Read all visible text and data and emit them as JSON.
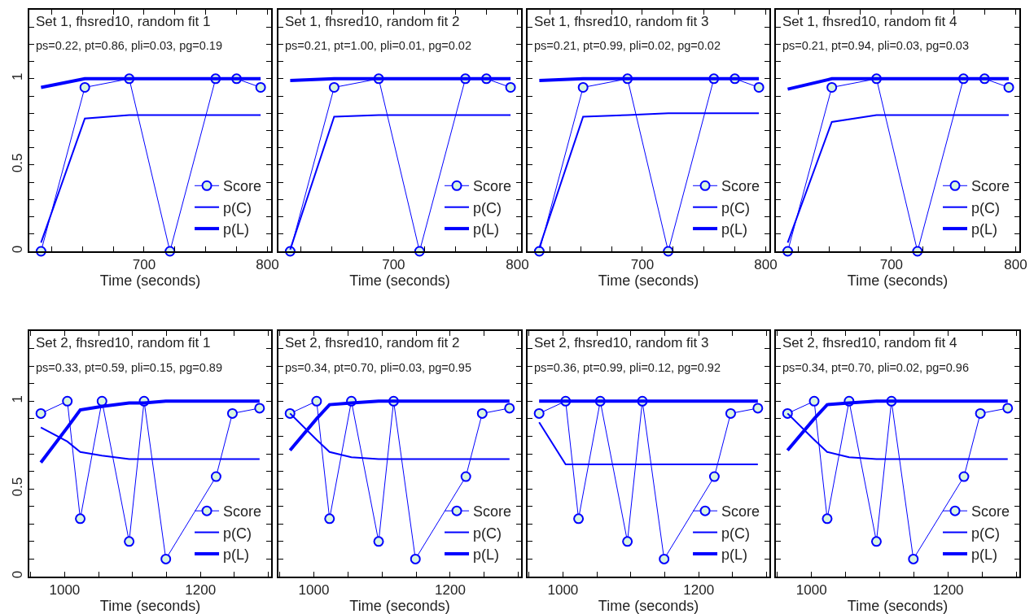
{
  "chart_data": [
    {
      "type": "line",
      "title": "Set 1, fhsred10, random fit 1",
      "subtitle": "ps=0.22, pt=0.86, pli=0.03, pg=0.19",
      "xlabel": "Time (seconds)",
      "x": [
        616.5,
        652,
        688,
        721,
        758,
        775,
        794.5
      ],
      "series": [
        {
          "name": "Score",
          "color": "#0000ff",
          "marker": "circle",
          "values": [
            0,
            0.95,
            1,
            0,
            1,
            1,
            0.95
          ]
        },
        {
          "name": "p(C)",
          "color": "#0000ff",
          "marker": "none",
          "values": [
            0.05,
            0.77,
            0.79,
            0.79,
            0.79,
            0.79,
            0.79
          ]
        },
        {
          "name": "p(L)",
          "color": "#0000ff",
          "marker": "none",
          "values": [
            0.95,
            1,
            1,
            1,
            1,
            1,
            1
          ]
        }
      ],
      "xlim": [
        607,
        803
      ],
      "xticks": [
        {
          "value": 625,
          "label": null
        },
        {
          "value": 650,
          "label": null
        },
        {
          "value": 675,
          "label": null
        },
        700,
        {
          "value": 725,
          "label": null
        },
        {
          "value": 750,
          "label": null
        },
        {
          "value": 775,
          "label": null
        },
        800
      ],
      "ylim": [
        0,
        1.4
      ],
      "yticks": [
        0,
        {
          "value": 0.1,
          "label": null
        },
        {
          "value": 0.2,
          "label": null
        },
        {
          "value": 0.3,
          "label": null
        },
        {
          "value": 0.4,
          "label": null
        },
        0.5,
        {
          "value": 0.6,
          "label": null
        },
        {
          "value": 0.7,
          "label": null
        },
        {
          "value": 0.8,
          "label": null
        },
        {
          "value": 0.9,
          "label": null
        },
        1,
        {
          "value": 1.1,
          "label": null
        },
        {
          "value": 1.2,
          "label": null
        },
        {
          "value": 1.3,
          "label": null
        }
      ],
      "legend": "bottom right"
    },
    {
      "type": "line",
      "title": "Set 1, fhsred10, random fit 2",
      "subtitle": "ps=0.21, pt=1.00, pli=0.01, pg=0.02",
      "xlabel": "Time (seconds)",
      "x": [
        616.5,
        652,
        688,
        721,
        758,
        775,
        794.5
      ],
      "series": [
        {
          "name": "Score",
          "color": "#0000ff",
          "marker": "circle",
          "values": [
            0,
            0.95,
            1,
            0,
            1,
            1,
            0.95
          ]
        },
        {
          "name": "p(C)",
          "color": "#0000ff",
          "marker": "none",
          "values": [
            0.01,
            0.78,
            0.79,
            0.79,
            0.79,
            0.79,
            0.79
          ]
        },
        {
          "name": "p(L)",
          "color": "#0000ff",
          "marker": "none",
          "values": [
            0.99,
            1,
            1,
            1,
            1,
            1,
            1
          ]
        }
      ],
      "xlim": [
        607,
        803
      ],
      "xticks": [
        {
          "value": 625,
          "label": null
        },
        {
          "value": 650,
          "label": null
        },
        {
          "value": 675,
          "label": null
        },
        700,
        {
          "value": 725,
          "label": null
        },
        {
          "value": 750,
          "label": null
        },
        {
          "value": 775,
          "label": null
        },
        800
      ],
      "ylim": [
        0,
        1.4
      ],
      "yticks": [
        0,
        {
          "value": 0.1,
          "label": null
        },
        {
          "value": 0.2,
          "label": null
        },
        {
          "value": 0.3,
          "label": null
        },
        {
          "value": 0.4,
          "label": null
        },
        0.5,
        {
          "value": 0.6,
          "label": null
        },
        {
          "value": 0.7,
          "label": null
        },
        {
          "value": 0.8,
          "label": null
        },
        {
          "value": 0.9,
          "label": null
        },
        1,
        {
          "value": 1.1,
          "label": null
        },
        {
          "value": 1.2,
          "label": null
        },
        {
          "value": 1.3,
          "label": null
        }
      ],
      "tick_labels": "x",
      "legend": "bottom right"
    },
    {
      "type": "line",
      "title": "Set 1, fhsred10, random fit 3",
      "subtitle": "ps=0.21, pt=0.99, pli=0.02, pg=0.02",
      "xlabel": "Time (seconds)",
      "x": [
        616.5,
        652,
        688,
        721,
        758,
        775,
        794.5
      ],
      "series": [
        {
          "name": "Score",
          "color": "#0000ff",
          "marker": "circle",
          "values": [
            0,
            0.95,
            1,
            0,
            1,
            1,
            0.95
          ]
        },
        {
          "name": "p(C)",
          "color": "#0000ff",
          "marker": "none",
          "values": [
            0.02,
            0.78,
            0.79,
            0.8,
            0.8,
            0.8,
            0.8
          ]
        },
        {
          "name": "p(L)",
          "color": "#0000ff",
          "marker": "none",
          "values": [
            0.99,
            1,
            1,
            1,
            1,
            1,
            1
          ]
        }
      ],
      "xlim": [
        607,
        803
      ],
      "xticks": [
        {
          "value": 625,
          "label": null
        },
        {
          "value": 650,
          "label": null
        },
        {
          "value": 675,
          "label": null
        },
        700,
        {
          "value": 725,
          "label": null
        },
        {
          "value": 750,
          "label": null
        },
        {
          "value": 775,
          "label": null
        },
        800
      ],
      "ylim": [
        0,
        1.4
      ],
      "yticks": [
        0,
        {
          "value": 0.1,
          "label": null
        },
        {
          "value": 0.2,
          "label": null
        },
        {
          "value": 0.3,
          "label": null
        },
        {
          "value": 0.4,
          "label": null
        },
        0.5,
        {
          "value": 0.6,
          "label": null
        },
        {
          "value": 0.7,
          "label": null
        },
        {
          "value": 0.8,
          "label": null
        },
        {
          "value": 0.9,
          "label": null
        },
        1,
        {
          "value": 1.1,
          "label": null
        },
        {
          "value": 1.2,
          "label": null
        },
        {
          "value": 1.3,
          "label": null
        }
      ],
      "tick_labels": "x",
      "legend": "bottom right"
    },
    {
      "type": "line",
      "title": "Set 1, fhsred10, random fit 4",
      "subtitle": "ps=0.21, pt=0.94, pli=0.03, pg=0.03",
      "xlabel": "Time (seconds)",
      "x": [
        616.5,
        652,
        688,
        721,
        758,
        775,
        794.5
      ],
      "series": [
        {
          "name": "Score",
          "color": "#0000ff",
          "marker": "circle",
          "values": [
            0,
            0.95,
            1,
            0,
            1,
            1,
            0.95
          ]
        },
        {
          "name": "p(C)",
          "color": "#0000ff",
          "marker": "none",
          "values": [
            0.05,
            0.75,
            0.79,
            0.79,
            0.79,
            0.79,
            0.79
          ]
        },
        {
          "name": "p(L)",
          "color": "#0000ff",
          "marker": "none",
          "values": [
            0.94,
            1,
            1,
            1,
            1,
            1,
            1
          ]
        }
      ],
      "xlim": [
        607,
        803
      ],
      "xticks": [
        {
          "value": 625,
          "label": null
        },
        {
          "value": 650,
          "label": null
        },
        {
          "value": 675,
          "label": null
        },
        700,
        {
          "value": 725,
          "label": null
        },
        {
          "value": 750,
          "label": null
        },
        {
          "value": 775,
          "label": null
        },
        800
      ],
      "ylim": [
        0,
        1.4
      ],
      "yticks": [
        0,
        {
          "value": 0.1,
          "label": null
        },
        {
          "value": 0.2,
          "label": null
        },
        {
          "value": 0.3,
          "label": null
        },
        {
          "value": 0.4,
          "label": null
        },
        0.5,
        {
          "value": 0.6,
          "label": null
        },
        {
          "value": 0.7,
          "label": null
        },
        {
          "value": 0.8,
          "label": null
        },
        {
          "value": 0.9,
          "label": null
        },
        1,
        {
          "value": 1.1,
          "label": null
        },
        {
          "value": 1.2,
          "label": null
        },
        {
          "value": 1.3,
          "label": null
        }
      ],
      "tick_labels": "x",
      "legend": "bottom right"
    },
    {
      "type": "line",
      "title": "Set 2, fhsred10, random fit 1",
      "subtitle": "ps=0.33, pt=0.59, pli=0.15, pg=0.89",
      "xlabel": "Time (seconds)",
      "x": [
        965,
        1004,
        1023,
        1055,
        1095,
        1117,
        1149,
        1223,
        1247,
        1287
      ],
      "series": [
        {
          "name": "Score",
          "color": "#0000ff",
          "marker": "circle",
          "values": [
            0.93,
            1,
            0.33,
            1,
            0.2,
            1,
            0.1,
            0.57,
            0.93,
            0.96
          ]
        },
        {
          "name": "p(C)",
          "color": "#0000ff",
          "marker": "none",
          "values": [
            0.85,
            0.77,
            0.71,
            0.69,
            0.67,
            0.67,
            0.67,
            0.67,
            0.67,
            0.67
          ]
        },
        {
          "name": "p(L)",
          "color": "#0000ff",
          "marker": "none",
          "values": [
            0.65,
            0.85,
            0.95,
            0.97,
            0.99,
            0.99,
            1,
            1,
            1,
            1
          ]
        }
      ],
      "xlim": [
        948,
        1304
      ],
      "xticks": [
        {
          "value": 950,
          "label": null
        },
        1000,
        {
          "value": 1050,
          "label": null
        },
        {
          "value": 1100,
          "label": null
        },
        {
          "value": 1150,
          "label": null
        },
        1200,
        {
          "value": 1250,
          "label": null
        },
        {
          "value": 1300,
          "label": null
        }
      ],
      "ylim": [
        0,
        1.4
      ],
      "yticks": [
        0,
        {
          "value": 0.1,
          "label": null
        },
        {
          "value": 0.2,
          "label": null
        },
        {
          "value": 0.3,
          "label": null
        },
        {
          "value": 0.4,
          "label": null
        },
        0.5,
        {
          "value": 0.6,
          "label": null
        },
        {
          "value": 0.7,
          "label": null
        },
        {
          "value": 0.8,
          "label": null
        },
        {
          "value": 0.9,
          "label": null
        },
        1,
        {
          "value": 1.1,
          "label": null
        },
        {
          "value": 1.2,
          "label": null
        },
        {
          "value": 1.3,
          "label": null
        }
      ],
      "legend": "bottom right"
    },
    {
      "type": "line",
      "title": "Set 2, fhsred10, random fit 2",
      "subtitle": "ps=0.34, pt=0.70, pli=0.03, pg=0.95",
      "xlabel": "Time (seconds)",
      "x": [
        965,
        1004,
        1023,
        1055,
        1095,
        1117,
        1149,
        1223,
        1247,
        1287
      ],
      "series": [
        {
          "name": "Score",
          "color": "#0000ff",
          "marker": "circle",
          "values": [
            0.93,
            1,
            0.33,
            1,
            0.2,
            1,
            0.1,
            0.57,
            0.93,
            0.96
          ]
        },
        {
          "name": "p(C)",
          "color": "#0000ff",
          "marker": "none",
          "values": [
            0.93,
            0.78,
            0.71,
            0.68,
            0.67,
            0.67,
            0.67,
            0.67,
            0.67,
            0.67
          ]
        },
        {
          "name": "p(L)",
          "color": "#0000ff",
          "marker": "none",
          "values": [
            0.72,
            0.9,
            0.98,
            0.99,
            1,
            1,
            1,
            1,
            1,
            1
          ]
        }
      ],
      "xlim": [
        948,
        1304
      ],
      "xticks": [
        {
          "value": 950,
          "label": null
        },
        1000,
        {
          "value": 1050,
          "label": null
        },
        {
          "value": 1100,
          "label": null
        },
        {
          "value": 1150,
          "label": null
        },
        1200,
        {
          "value": 1250,
          "label": null
        },
        {
          "value": 1300,
          "label": null
        }
      ],
      "ylim": [
        0,
        1.4
      ],
      "yticks": [
        0,
        {
          "value": 0.1,
          "label": null
        },
        {
          "value": 0.2,
          "label": null
        },
        {
          "value": 0.3,
          "label": null
        },
        {
          "value": 0.4,
          "label": null
        },
        0.5,
        {
          "value": 0.6,
          "label": null
        },
        {
          "value": 0.7,
          "label": null
        },
        {
          "value": 0.8,
          "label": null
        },
        {
          "value": 0.9,
          "label": null
        },
        1,
        {
          "value": 1.1,
          "label": null
        },
        {
          "value": 1.2,
          "label": null
        },
        {
          "value": 1.3,
          "label": null
        }
      ],
      "tick_labels": "x",
      "legend": "bottom right"
    },
    {
      "type": "line",
      "title": "Set 2, fhsred10, random fit 3",
      "subtitle": "ps=0.36, pt=0.99, pli=0.12, pg=0.92",
      "xlabel": "Time (seconds)",
      "x": [
        965,
        1004,
        1023,
        1055,
        1095,
        1117,
        1149,
        1223,
        1247,
        1287
      ],
      "series": [
        {
          "name": "Score",
          "color": "#0000ff",
          "marker": "circle",
          "values": [
            0.93,
            1,
            0.33,
            1,
            0.2,
            1,
            0.1,
            0.57,
            0.93,
            0.96
          ]
        },
        {
          "name": "p(C)",
          "color": "#0000ff",
          "marker": "none",
          "values": [
            0.88,
            0.64,
            0.64,
            0.64,
            0.64,
            0.64,
            0.64,
            0.64,
            0.64,
            0.64
          ]
        },
        {
          "name": "p(L)",
          "color": "#0000ff",
          "marker": "none",
          "values": [
            1,
            1,
            1,
            1,
            1,
            1,
            1,
            1,
            1,
            1
          ]
        }
      ],
      "xlim": [
        948,
        1304
      ],
      "xticks": [
        {
          "value": 950,
          "label": null
        },
        1000,
        {
          "value": 1050,
          "label": null
        },
        {
          "value": 1100,
          "label": null
        },
        {
          "value": 1150,
          "label": null
        },
        1200,
        {
          "value": 1250,
          "label": null
        },
        {
          "value": 1300,
          "label": null
        }
      ],
      "ylim": [
        0,
        1.4
      ],
      "yticks": [
        0,
        {
          "value": 0.1,
          "label": null
        },
        {
          "value": 0.2,
          "label": null
        },
        {
          "value": 0.3,
          "label": null
        },
        {
          "value": 0.4,
          "label": null
        },
        0.5,
        {
          "value": 0.6,
          "label": null
        },
        {
          "value": 0.7,
          "label": null
        },
        {
          "value": 0.8,
          "label": null
        },
        {
          "value": 0.9,
          "label": null
        },
        1,
        {
          "value": 1.1,
          "label": null
        },
        {
          "value": 1.2,
          "label": null
        },
        {
          "value": 1.3,
          "label": null
        }
      ],
      "tick_labels": "x",
      "legend": "bottom right"
    },
    {
      "type": "line",
      "title": "Set 2, fhsred10, random fit 4",
      "subtitle": "ps=0.34, pt=0.70, pli=0.02, pg=0.96",
      "xlabel": "Time (seconds)",
      "x": [
        965,
        1004,
        1023,
        1055,
        1095,
        1117,
        1149,
        1223,
        1247,
        1287
      ],
      "series": [
        {
          "name": "Score",
          "color": "#0000ff",
          "marker": "circle",
          "values": [
            0.93,
            1,
            0.33,
            1,
            0.2,
            1,
            0.1,
            0.57,
            0.93,
            0.96
          ]
        },
        {
          "name": "p(C)",
          "color": "#0000ff",
          "marker": "none",
          "values": [
            0.93,
            0.78,
            0.71,
            0.68,
            0.67,
            0.67,
            0.67,
            0.67,
            0.67,
            0.67
          ]
        },
        {
          "name": "p(L)",
          "color": "#0000ff",
          "marker": "none",
          "values": [
            0.72,
            0.9,
            0.98,
            0.99,
            1,
            1,
            1,
            1,
            1,
            1
          ]
        }
      ],
      "xlim": [
        948,
        1304
      ],
      "xticks": [
        {
          "value": 950,
          "label": null
        },
        1000,
        {
          "value": 1050,
          "label": null
        },
        {
          "value": 1100,
          "label": null
        },
        {
          "value": 1150,
          "label": null
        },
        1200,
        {
          "value": 1250,
          "label": null
        },
        {
          "value": 1300,
          "label": null
        }
      ],
      "ylim": [
        0,
        1.4
      ],
      "yticks": [
        0,
        {
          "value": 0.1,
          "label": null
        },
        {
          "value": 0.2,
          "label": null
        },
        {
          "value": 0.3,
          "label": null
        },
        {
          "value": 0.4,
          "label": null
        },
        0.5,
        {
          "value": 0.6,
          "label": null
        },
        {
          "value": 0.7,
          "label": null
        },
        {
          "value": 0.8,
          "label": null
        },
        {
          "value": 0.9,
          "label": null
        },
        1,
        {
          "value": 1.1,
          "label": null
        },
        {
          "value": 1.2,
          "label": null
        },
        {
          "value": 1.3,
          "label": null
        }
      ],
      "tick_labels": "x",
      "legend": "bottom right"
    }
  ]
}
